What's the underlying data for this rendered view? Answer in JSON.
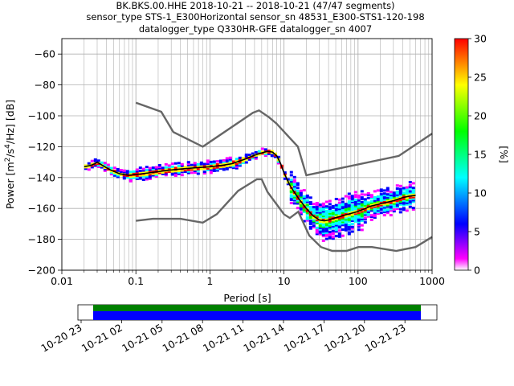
{
  "chart_data": {
    "type": "heatmap",
    "title_lines": [
      "BK.BKS.00.HHE   2018-10-21 -- 2018-10-21  (47/47 segments)",
      "sensor_type STS-1_E300Horizontal sensor_sn 48531_E300-STS1-120-198",
      "datalogger_type Q330HR-GFE datalogger_sn 4007"
    ],
    "xlabel": "Period [s]",
    "ylabel_prefix": "Power [m",
    "ylabel_sup1": "2",
    "ylabel_mid": "/s",
    "ylabel_sup2": "4",
    "ylabel_suffix": "/Hz] [dB]",
    "x_scale": "log",
    "xlim": [
      0.01,
      1000
    ],
    "ylim": [
      -200,
      -50
    ],
    "x_ticks": [
      {
        "value": 0.01,
        "label": "0.01"
      },
      {
        "value": 0.1,
        "label": "0.1"
      },
      {
        "value": 1,
        "label": "1"
      },
      {
        "value": 10,
        "label": "10"
      },
      {
        "value": 100,
        "label": "100"
      },
      {
        "value": 1000,
        "label": "1000"
      }
    ],
    "y_ticks": [
      {
        "value": -60,
        "label": "−60"
      },
      {
        "value": -80,
        "label": "−80"
      },
      {
        "value": -100,
        "label": "−100"
      },
      {
        "value": -120,
        "label": "−120"
      },
      {
        "value": -140,
        "label": "−140"
      },
      {
        "value": -160,
        "label": "−160"
      },
      {
        "value": -180,
        "label": "−180"
      },
      {
        "value": -200,
        "label": "−200"
      }
    ],
    "grid": true,
    "colorbar": {
      "label": "[%]",
      "range": [
        0,
        30
      ],
      "ticks": [
        {
          "value": 0,
          "label": "0"
        },
        {
          "value": 5,
          "label": "5"
        },
        {
          "value": 10,
          "label": "10"
        },
        {
          "value": 15,
          "label": "15"
        },
        {
          "value": 20,
          "label": "20"
        },
        {
          "value": 25,
          "label": "25"
        },
        {
          "value": 30,
          "label": "30"
        }
      ],
      "colors": [
        "#ffffff",
        "#ff00ff",
        "#0000ff",
        "#00ffff",
        "#00ff00",
        "#ffff00",
        "#ff0000"
      ]
    },
    "noise_model_high": {
      "x": [
        0.1,
        0.22,
        0.32,
        0.8,
        3.8,
        4.6,
        6.3,
        7.9,
        15.4,
        20,
        354.8,
        1000
      ],
      "y": [
        -91.5,
        -97.4,
        -110.5,
        -120,
        -98,
        -96.5,
        -101,
        -105,
        -120,
        -138.5,
        -126,
        -111.5
      ]
    },
    "noise_model_low": {
      "x": [
        0.1,
        0.17,
        0.4,
        0.8,
        1.24,
        2.4,
        4.3,
        5,
        6,
        10,
        12,
        15.6,
        21.9,
        31.6,
        45,
        70,
        101,
        154,
        328,
        600,
        1000
      ],
      "y": [
        -168,
        -166.7,
        -166.7,
        -169.2,
        -163.7,
        -148.6,
        -141.1,
        -141.1,
        -149.3,
        -163.8,
        -166.2,
        -162.1,
        -177.5,
        -185,
        -187.5,
        -187.5,
        -185,
        -185,
        -187.5,
        -185,
        -178.5
      ]
    },
    "mean_curve": {
      "x": [
        0.02,
        0.025,
        0.028,
        0.03,
        0.035,
        0.045,
        0.06,
        0.08,
        0.1,
        0.15,
        0.25,
        0.4,
        0.7,
        1,
        1.5,
        2,
        3,
        4,
        5,
        6,
        7,
        8,
        9,
        10,
        12,
        14,
        16,
        20,
        25,
        30,
        35,
        40,
        50,
        70,
        100,
        150,
        200,
        300,
        400,
        500,
        600
      ],
      "y": [
        -133,
        -132,
        -131,
        -130,
        -132,
        -135,
        -137.5,
        -138.5,
        -138,
        -137,
        -135.5,
        -134.5,
        -133.5,
        -133,
        -132,
        -131,
        -128,
        -125.5,
        -124,
        -123,
        -123.5,
        -126,
        -131,
        -137,
        -145,
        -150,
        -154,
        -160,
        -165,
        -167.5,
        -168,
        -167.5,
        -166,
        -164,
        -162,
        -158.5,
        -157,
        -155,
        -153,
        -152,
        -151.5
      ]
    },
    "color_timeline_ticks": [
      "10-20 23",
      "10-21 02",
      "10-21 05",
      "10-21 08",
      "10-21 11",
      "10-21 14",
      "10-21 17",
      "10-21 20",
      "10-21 23"
    ]
  }
}
